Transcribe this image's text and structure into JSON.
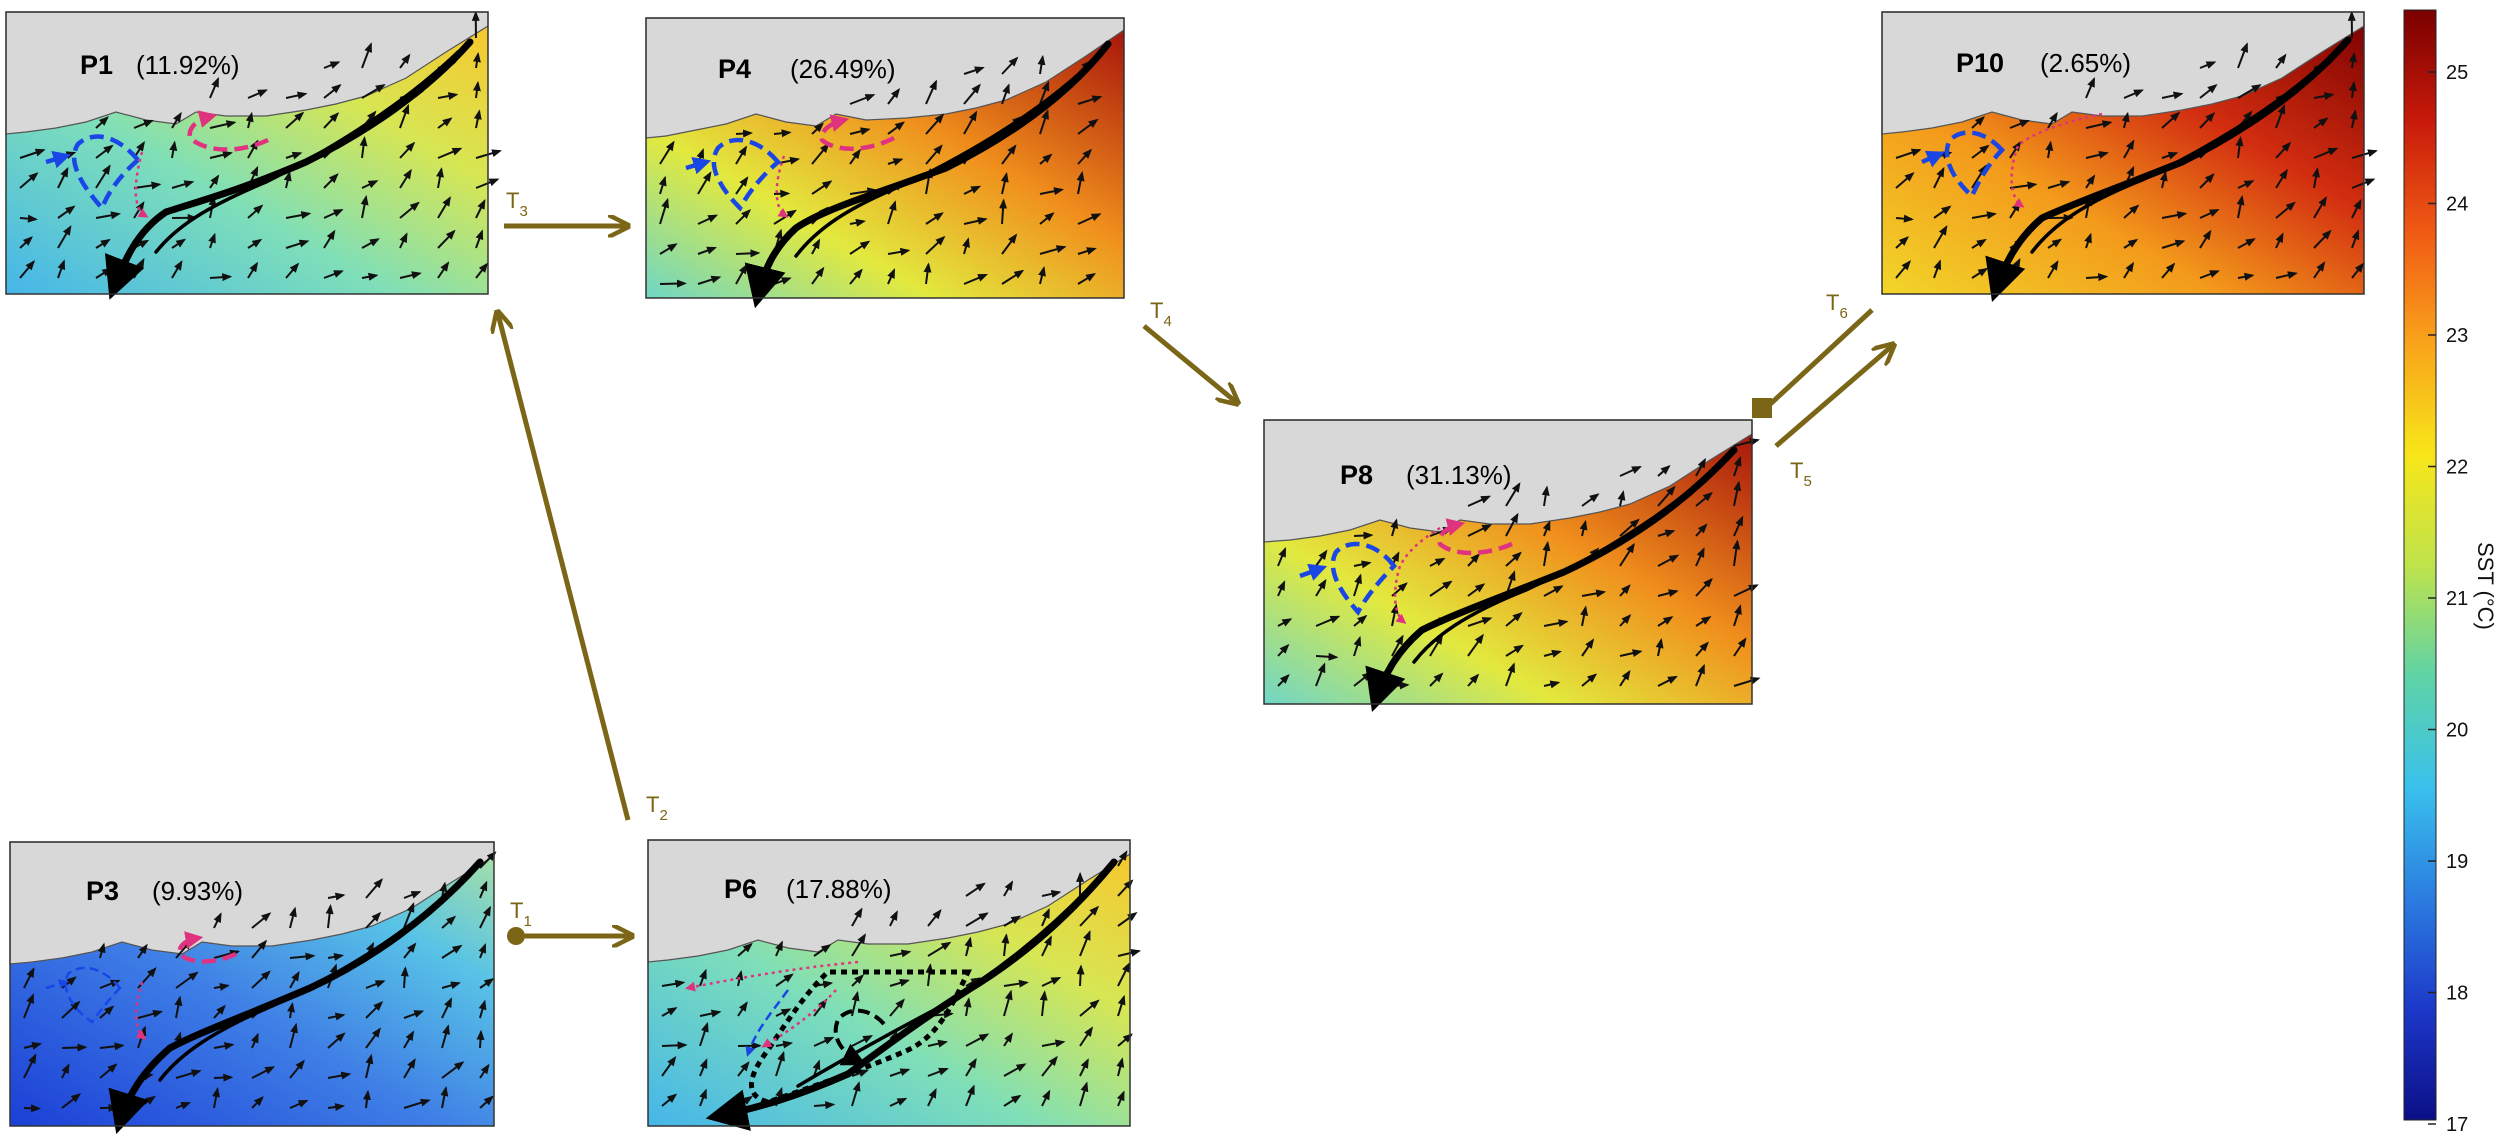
{
  "panels": [
    {
      "id": "P1",
      "label": "P1",
      "pct": "(11.92%)",
      "pal": 1
    },
    {
      "id": "P4",
      "label": "P4",
      "pct": "(26.49%)",
      "pal": 2
    },
    {
      "id": "P10",
      "label": "P10",
      "pct": "(2.65%)",
      "pal": 3
    },
    {
      "id": "P8",
      "label": "P8",
      "pct": "(31.13%)",
      "pal": 2
    },
    {
      "id": "P3",
      "label": "P3",
      "pct": "(9.93%)",
      "pal": 0
    },
    {
      "id": "P6",
      "label": "P6",
      "pct": "(17.88%)",
      "pal": 1
    }
  ],
  "transitions": [
    {
      "id": "T1",
      "main": "T",
      "sub": "1"
    },
    {
      "id": "T2",
      "main": "T",
      "sub": "2"
    },
    {
      "id": "T3",
      "main": "T",
      "sub": "3"
    },
    {
      "id": "T4",
      "main": "T",
      "sub": "4"
    },
    {
      "id": "T5",
      "main": "T",
      "sub": "5"
    },
    {
      "id": "T6",
      "main": "T",
      "sub": "6"
    }
  ],
  "colorbar": {
    "label": "SST (°C)",
    "ticks": [
      "25",
      "24",
      "23",
      "22",
      "21",
      "20",
      "19",
      "18",
      "17"
    ],
    "colors": [
      "#7a0000",
      "#c81a0a",
      "#f05a14",
      "#f9a31b",
      "#f8e619",
      "#bfe34b",
      "#5fd3a6",
      "#39c1ec",
      "#2b7de0",
      "#1c38c9",
      "#0b0f86"
    ]
  },
  "colors": {
    "arrow": "#7b6516",
    "land": "#d8d8d8",
    "eddy_blue": "#1a46e6",
    "eddy_pink": "#e0337f"
  }
}
